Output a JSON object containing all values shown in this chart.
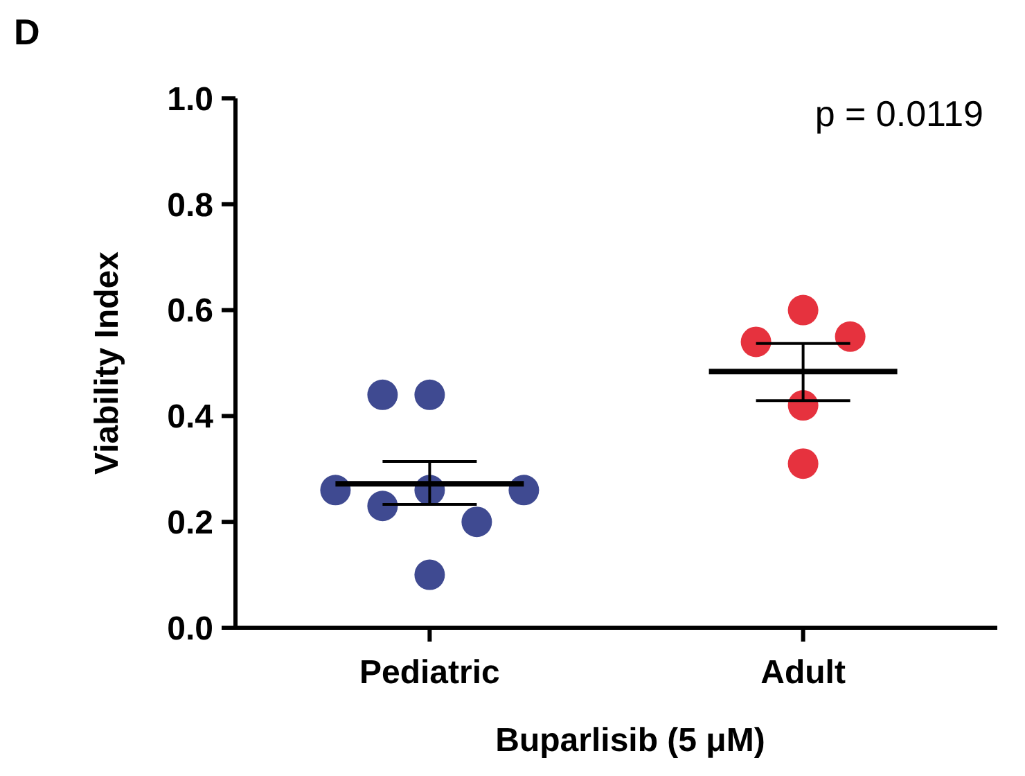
{
  "chart_data": {
    "type": "scatter",
    "title": "D",
    "xlabel": "Buparlisib (5 μM)",
    "ylabel": "Viability Index",
    "categories": [
      "Pediatric",
      "Adult"
    ],
    "ylim": [
      0,
      1
    ],
    "yticks": [
      {
        "value": 0,
        "label": "0.0"
      },
      {
        "value": 0.2,
        "label": "0.2"
      },
      {
        "value": 0.4,
        "label": "0.4"
      },
      {
        "value": 0.6,
        "label": "0.6"
      },
      {
        "value": 0.8,
        "label": "0.8"
      },
      {
        "value": 1,
        "label": "1.0"
      }
    ],
    "grid": false,
    "annotations": [
      "p = 0.0119"
    ],
    "series": [
      {
        "marker": "circle",
        "x": [
          "Pediatric",
          "Pediatric",
          "Pediatric",
          "Pediatric",
          "Pediatric",
          "Pediatric",
          "Pediatric",
          "Pediatric",
          "Adult",
          "Adult",
          "Adult",
          "Adult",
          "Adult"
        ],
        "values": [
          0.44,
          0.44,
          0.26,
          0.23,
          0.2,
          0.26,
          0.26,
          0.1,
          0.6,
          0.54,
          0.55,
          0.42,
          0.31
        ],
        "colors": [
          "#3f4a91",
          "#3f4a91",
          "#3f4a91",
          "#3f4a91",
          "#3f4a91",
          "#3f4a91",
          "#3f4a91",
          "#3f4a91",
          "#e6323e",
          "#e6323e",
          "#e6323e",
          "#e6323e",
          "#e6323e"
        ]
      },
      {
        "type": "box",
        "color": "#000000",
        "boxes": [
          {
            "low": 0.233,
            "q1": 0.272,
            "median": 0.272,
            "q3": 0.272,
            "high": 0.314
          },
          {
            "low": 0.429,
            "q1": 0.484,
            "median": 0.484,
            "q3": 0.484,
            "high": 0.537
          }
        ]
      }
    ]
  }
}
